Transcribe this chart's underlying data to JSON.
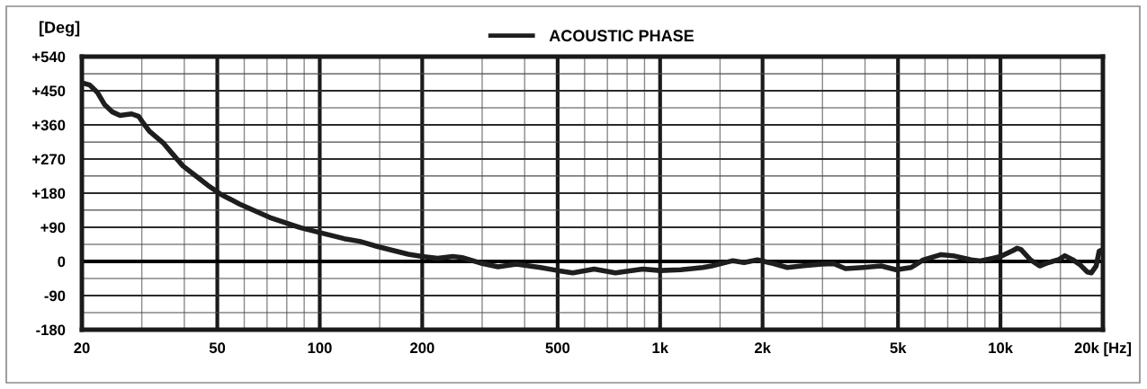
{
  "chart_data": {
    "type": "line",
    "ylabel": "[Deg]",
    "log": "x",
    "xlim": [
      20,
      20000
    ],
    "ylim": [
      -180,
      540
    ],
    "xticks": [
      20,
      {
        "value": 30,
        "label": null
      },
      {
        "value": 40,
        "label": null
      },
      50,
      {
        "value": 60,
        "label": null
      },
      {
        "value": 70,
        "label": null
      },
      {
        "value": 80,
        "label": null
      },
      {
        "value": 90,
        "label": null
      },
      100,
      {
        "value": 150,
        "label": null
      },
      200,
      {
        "value": 300,
        "label": null
      },
      {
        "value": 400,
        "label": null
      },
      500,
      {
        "value": 600,
        "label": null
      },
      {
        "value": 700,
        "label": null
      },
      {
        "value": 800,
        "label": null
      },
      {
        "value": 900,
        "label": null
      },
      {
        "value": 1000,
        "label": "1k"
      },
      {
        "value": 1500,
        "label": null
      },
      {
        "value": 2000,
        "label": "2k"
      },
      {
        "value": 3000,
        "label": null
      },
      {
        "value": 4000,
        "label": null
      },
      {
        "value": 5000,
        "label": "5k"
      },
      {
        "value": 6000,
        "label": null
      },
      {
        "value": 7000,
        "label": null
      },
      {
        "value": 8000,
        "label": null
      },
      {
        "value": 9000,
        "label": null
      },
      {
        "value": 10000,
        "label": "10k"
      },
      {
        "value": 15000,
        "label": null
      },
      {
        "value": 20000,
        "label": "20k [Hz]"
      }
    ],
    "yticks": [
      -180,
      {
        "value": -135,
        "label": null
      },
      -90,
      {
        "value": -45,
        "label": null
      },
      0,
      {
        "value": 45,
        "label": null
      },
      {
        "value": 90,
        "label": "+90"
      },
      {
        "value": 135,
        "label": null
      },
      {
        "value": 180,
        "label": "+180"
      },
      {
        "value": 225,
        "label": null
      },
      {
        "value": 270,
        "label": "+270"
      },
      {
        "value": 315,
        "label": null
      },
      {
        "value": 360,
        "label": "+360"
      },
      {
        "value": 405,
        "label": null
      },
      {
        "value": 450,
        "label": "+450"
      },
      {
        "value": 495,
        "label": null
      },
      {
        "value": 540,
        "label": "+540"
      }
    ],
    "series": [
      {
        "name": "ACOUSTIC PHASE",
        "color": "#1e1e1e",
        "x": [
          20,
          21.1,
          22.2,
          23.3,
          24.6,
          25.9,
          28,
          29.4,
          30.4,
          31.6,
          34.8,
          36.9,
          39.6,
          43.9,
          47.5,
          51.2,
          58.2,
          71.3,
          87.6,
          100,
          118,
          131,
          148,
          182,
          200,
          222,
          246,
          262,
          296,
          334,
          378,
          445,
          500,
          554,
          640,
          739,
          889,
          1000,
          1150,
          1335,
          1418,
          1636,
          1765,
          1931,
          2114,
          2365,
          2644,
          2987,
          3237,
          3506,
          3953,
          4460,
          4937,
          5464,
          5924,
          6693,
          7256,
          8205,
          8715,
          9444,
          10000,
          10900,
          11200,
          11500,
          12260,
          13030,
          13840,
          14850,
          15460,
          16270,
          17100,
          18000,
          18500,
          19100,
          19500,
          20000
        ],
        "values": [
          471,
          465,
          446,
          414,
          394,
          385,
          389,
          382,
          363,
          343,
          311,
          284,
          252,
          221,
          197,
          177,
          151,
          116,
          89,
          76,
          60,
          53,
          39,
          19,
          13,
          8,
          13,
          10,
          -4,
          -14,
          -7,
          -16,
          -24,
          -30,
          -20,
          -30,
          -20,
          -24,
          -22,
          -16,
          -12,
          2,
          -3,
          4,
          -4,
          -16,
          -11,
          -7,
          -6,
          -19,
          -16,
          -12,
          -22,
          -16,
          4,
          18,
          15,
          4,
          1,
          8,
          13,
          29,
          35,
          31,
          4,
          -12,
          -3,
          5,
          15,
          5,
          -8,
          -28,
          -30,
          -12,
          27,
          31
        ]
      }
    ],
    "ref_lines": [
      {
        "axis": "y",
        "value": 0,
        "color": "#000000"
      }
    ],
    "grid": true,
    "legend": "top",
    "line_style": "solid"
  }
}
